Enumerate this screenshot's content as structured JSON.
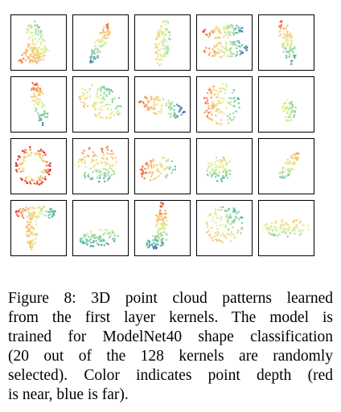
{
  "figure": {
    "caption_lines": [
      "Figure 8: 3D point cloud patterns learned",
      "from the first layer kernels. The model is",
      "trained for ModelNet40 shape classification",
      "(20 out of the 128 kernels are randomly",
      "selected). Color indicates point depth (red",
      "is near, blue is far)."
    ]
  },
  "colors": {
    "near": "#d7191c",
    "mid_warm": "#fdae61",
    "mid": "#e6f598",
    "mid_cool": "#66c2a5",
    "far": "#2b43c2",
    "frame": "#000000"
  },
  "kernels": [
    {
      "shape": "tall-left",
      "depth": "diagonal"
    },
    {
      "shape": "thin-diagonal",
      "depth": "vertical"
    },
    {
      "shape": "narrow-vertical",
      "depth": "horizontal"
    },
    {
      "shape": "two-discs",
      "depth": "horizontal"
    },
    {
      "shape": "thin-vertical",
      "depth": "vertical"
    },
    {
      "shape": "thin-vertical",
      "depth": "vertical"
    },
    {
      "shape": "curved-blob",
      "depth": "diagonal"
    },
    {
      "shape": "flat-wedge",
      "depth": "horizontal"
    },
    {
      "shape": "round-blob",
      "depth": "horizontal"
    },
    {
      "shape": "small-oval",
      "depth": "horizontal"
    },
    {
      "shape": "ring",
      "depth": "radial"
    },
    {
      "shape": "scatter",
      "depth": "vertical"
    },
    {
      "shape": "wedge-low",
      "depth": "horizontal"
    },
    {
      "shape": "curved-thin",
      "depth": "vertical"
    },
    {
      "shape": "thin-diagonal-small",
      "depth": "vertical"
    },
    {
      "shape": "t-shape",
      "depth": "horizontal"
    },
    {
      "shape": "flat-low",
      "depth": "vertical"
    },
    {
      "shape": "l-shape",
      "depth": "vertical"
    },
    {
      "shape": "triangle",
      "depth": "diagonal"
    },
    {
      "shape": "flat-oval",
      "depth": "vertical"
    }
  ]
}
